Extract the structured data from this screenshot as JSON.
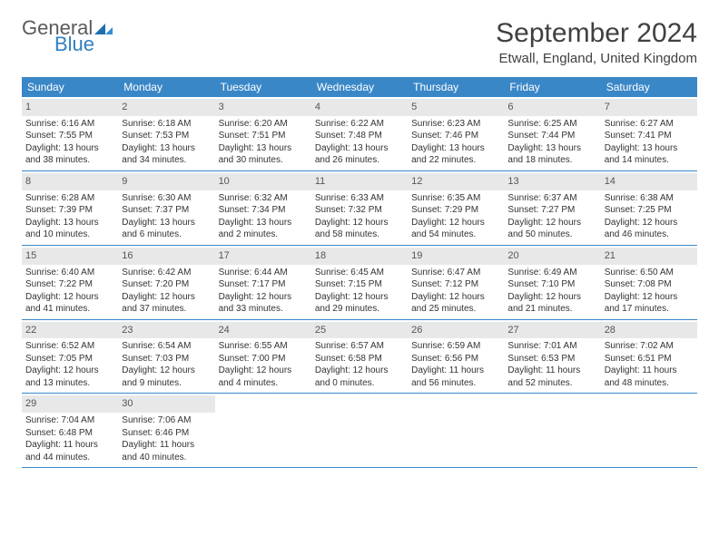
{
  "logo": {
    "text1": "General",
    "text2": "Blue",
    "icon_color": "#1f6fb0"
  },
  "title": "September 2024",
  "location": "Etwall, England, United Kingdom",
  "colors": {
    "header_bg": "#3a87c7",
    "header_text": "#ffffff",
    "daynum_bg": "#e8e8e8",
    "daynum_text": "#555555",
    "body_text": "#333333",
    "rule": "#3a87c7"
  },
  "fonts": {
    "title_pt": 30,
    "location_pt": 15,
    "dow_pt": 12,
    "daynum_pt": 11,
    "body_pt": 10
  },
  "dow": [
    "Sunday",
    "Monday",
    "Tuesday",
    "Wednesday",
    "Thursday",
    "Friday",
    "Saturday"
  ],
  "weeks": [
    [
      {
        "n": "1",
        "sunrise": "6:16 AM",
        "sunset": "7:55 PM",
        "dl1": "13 hours",
        "dl2": "and 38 minutes."
      },
      {
        "n": "2",
        "sunrise": "6:18 AM",
        "sunset": "7:53 PM",
        "dl1": "13 hours",
        "dl2": "and 34 minutes."
      },
      {
        "n": "3",
        "sunrise": "6:20 AM",
        "sunset": "7:51 PM",
        "dl1": "13 hours",
        "dl2": "and 30 minutes."
      },
      {
        "n": "4",
        "sunrise": "6:22 AM",
        "sunset": "7:48 PM",
        "dl1": "13 hours",
        "dl2": "and 26 minutes."
      },
      {
        "n": "5",
        "sunrise": "6:23 AM",
        "sunset": "7:46 PM",
        "dl1": "13 hours",
        "dl2": "and 22 minutes."
      },
      {
        "n": "6",
        "sunrise": "6:25 AM",
        "sunset": "7:44 PM",
        "dl1": "13 hours",
        "dl2": "and 18 minutes."
      },
      {
        "n": "7",
        "sunrise": "6:27 AM",
        "sunset": "7:41 PM",
        "dl1": "13 hours",
        "dl2": "and 14 minutes."
      }
    ],
    [
      {
        "n": "8",
        "sunrise": "6:28 AM",
        "sunset": "7:39 PM",
        "dl1": "13 hours",
        "dl2": "and 10 minutes."
      },
      {
        "n": "9",
        "sunrise": "6:30 AM",
        "sunset": "7:37 PM",
        "dl1": "13 hours",
        "dl2": "and 6 minutes."
      },
      {
        "n": "10",
        "sunrise": "6:32 AM",
        "sunset": "7:34 PM",
        "dl1": "13 hours",
        "dl2": "and 2 minutes."
      },
      {
        "n": "11",
        "sunrise": "6:33 AM",
        "sunset": "7:32 PM",
        "dl1": "12 hours",
        "dl2": "and 58 minutes."
      },
      {
        "n": "12",
        "sunrise": "6:35 AM",
        "sunset": "7:29 PM",
        "dl1": "12 hours",
        "dl2": "and 54 minutes."
      },
      {
        "n": "13",
        "sunrise": "6:37 AM",
        "sunset": "7:27 PM",
        "dl1": "12 hours",
        "dl2": "and 50 minutes."
      },
      {
        "n": "14",
        "sunrise": "6:38 AM",
        "sunset": "7:25 PM",
        "dl1": "12 hours",
        "dl2": "and 46 minutes."
      }
    ],
    [
      {
        "n": "15",
        "sunrise": "6:40 AM",
        "sunset": "7:22 PM",
        "dl1": "12 hours",
        "dl2": "and 41 minutes."
      },
      {
        "n": "16",
        "sunrise": "6:42 AM",
        "sunset": "7:20 PM",
        "dl1": "12 hours",
        "dl2": "and 37 minutes."
      },
      {
        "n": "17",
        "sunrise": "6:44 AM",
        "sunset": "7:17 PM",
        "dl1": "12 hours",
        "dl2": "and 33 minutes."
      },
      {
        "n": "18",
        "sunrise": "6:45 AM",
        "sunset": "7:15 PM",
        "dl1": "12 hours",
        "dl2": "and 29 minutes."
      },
      {
        "n": "19",
        "sunrise": "6:47 AM",
        "sunset": "7:12 PM",
        "dl1": "12 hours",
        "dl2": "and 25 minutes."
      },
      {
        "n": "20",
        "sunrise": "6:49 AM",
        "sunset": "7:10 PM",
        "dl1": "12 hours",
        "dl2": "and 21 minutes."
      },
      {
        "n": "21",
        "sunrise": "6:50 AM",
        "sunset": "7:08 PM",
        "dl1": "12 hours",
        "dl2": "and 17 minutes."
      }
    ],
    [
      {
        "n": "22",
        "sunrise": "6:52 AM",
        "sunset": "7:05 PM",
        "dl1": "12 hours",
        "dl2": "and 13 minutes."
      },
      {
        "n": "23",
        "sunrise": "6:54 AM",
        "sunset": "7:03 PM",
        "dl1": "12 hours",
        "dl2": "and 9 minutes."
      },
      {
        "n": "24",
        "sunrise": "6:55 AM",
        "sunset": "7:00 PM",
        "dl1": "12 hours",
        "dl2": "and 4 minutes."
      },
      {
        "n": "25",
        "sunrise": "6:57 AM",
        "sunset": "6:58 PM",
        "dl1": "12 hours",
        "dl2": "and 0 minutes."
      },
      {
        "n": "26",
        "sunrise": "6:59 AM",
        "sunset": "6:56 PM",
        "dl1": "11 hours",
        "dl2": "and 56 minutes."
      },
      {
        "n": "27",
        "sunrise": "7:01 AM",
        "sunset": "6:53 PM",
        "dl1": "11 hours",
        "dl2": "and 52 minutes."
      },
      {
        "n": "28",
        "sunrise": "7:02 AM",
        "sunset": "6:51 PM",
        "dl1": "11 hours",
        "dl2": "and 48 minutes."
      }
    ],
    [
      {
        "n": "29",
        "sunrise": "7:04 AM",
        "sunset": "6:48 PM",
        "dl1": "11 hours",
        "dl2": "and 44 minutes."
      },
      {
        "n": "30",
        "sunrise": "7:06 AM",
        "sunset": "6:46 PM",
        "dl1": "11 hours",
        "dl2": "and 40 minutes."
      },
      null,
      null,
      null,
      null,
      null
    ]
  ],
  "labels": {
    "sunrise": "Sunrise:",
    "sunset": "Sunset:",
    "daylight": "Daylight:"
  }
}
